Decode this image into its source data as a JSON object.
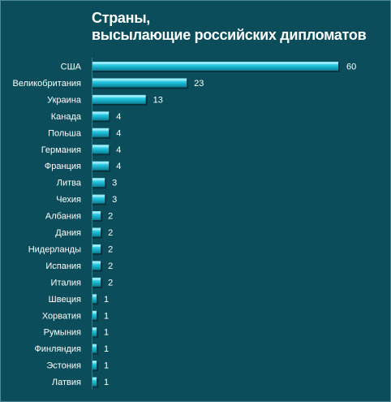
{
  "chart_data": {
    "type": "bar",
    "orientation": "horizontal",
    "title_lines": [
      "Страны,",
      "высылающие российских дипломатов"
    ],
    "categories": [
      "США",
      "Великобритания",
      "Украина",
      "Канада",
      "Польша",
      "Германия",
      "Франция",
      "Литва",
      "Чехия",
      "Албания",
      "Дания",
      "Нидерланды",
      "Испания",
      "Италия",
      "Швеция",
      "Хорватия",
      "Румыния",
      "Финляндия",
      "Эстония",
      "Латвия"
    ],
    "values": [
      60,
      23,
      13,
      4,
      4,
      4,
      4,
      3,
      3,
      2,
      2,
      2,
      2,
      2,
      1,
      1,
      1,
      1,
      1,
      1
    ],
    "data_labels": true,
    "grid": false,
    "legend": "none",
    "colors": {
      "background": "#0b4d5a",
      "bar_light": "#8ff0ff",
      "bar_mid": "#1fc3dd",
      "bar_dark": "#0a7e94",
      "text": "#ffffff"
    }
  }
}
